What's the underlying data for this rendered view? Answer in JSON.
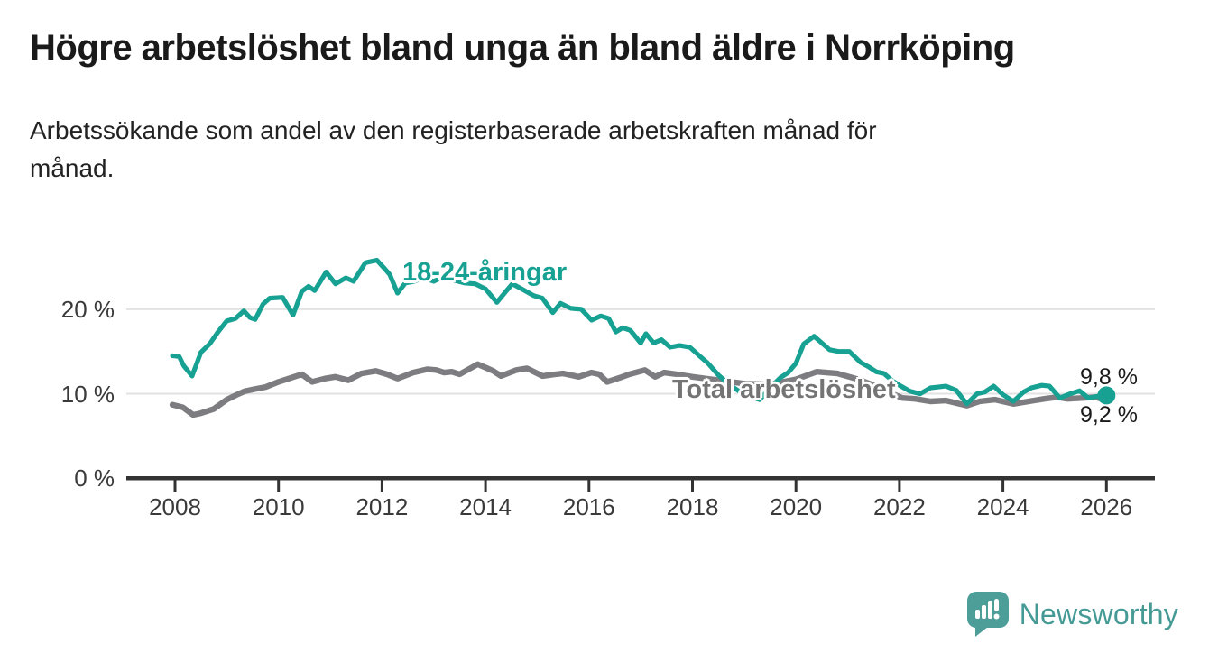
{
  "header": {
    "title": "Högre arbetslöshet bland unga än bland äldre i Norrköping",
    "subtitle_lines": [
      "Arbetssökande som andel av den registerbaserade arbetskraften månad för",
      "månad."
    ]
  },
  "chart_data": {
    "type": "line",
    "title": "Högre arbetslöshet bland unga än bland äldre i Norrköping",
    "xlabel": "",
    "ylabel": "",
    "grid": "horizontal-only",
    "legend_position": "inline-labels",
    "xlim": [
      2007.3,
      2026.9
    ],
    "ylim": [
      0,
      28
    ],
    "x_ticks": [
      2008,
      2010,
      2012,
      2014,
      2016,
      2018,
      2020,
      2022,
      2024,
      2026
    ],
    "y_ticks": [
      {
        "value": 0,
        "label": "0 %"
      },
      {
        "value": 10,
        "label": "10 %"
      },
      {
        "value": 20,
        "label": "20 %"
      }
    ],
    "colors": {
      "young": "#16a193",
      "total": "#7d7d81",
      "total_label_text": "#747474",
      "axis": "#333333",
      "gridline": "#e2e2e2"
    },
    "series": [
      {
        "name": "18-24-åringar",
        "color": "#16a193",
        "end_label": "9,8 %",
        "end_dot": true,
        "points": [
          [
            2007.95,
            14.5
          ],
          [
            2008.08,
            14.4
          ],
          [
            2008.17,
            13.3
          ],
          [
            2008.33,
            12.1
          ],
          [
            2008.5,
            14.9
          ],
          [
            2008.67,
            15.9
          ],
          [
            2008.83,
            17.3
          ],
          [
            2009.0,
            18.6
          ],
          [
            2009.17,
            18.9
          ],
          [
            2009.33,
            19.8
          ],
          [
            2009.45,
            19.0
          ],
          [
            2009.55,
            18.8
          ],
          [
            2009.7,
            20.6
          ],
          [
            2009.83,
            21.3
          ],
          [
            2010.08,
            21.4
          ],
          [
            2010.28,
            19.3
          ],
          [
            2010.45,
            22.1
          ],
          [
            2010.58,
            22.7
          ],
          [
            2010.7,
            22.2
          ],
          [
            2010.92,
            24.4
          ],
          [
            2011.1,
            23.0
          ],
          [
            2011.3,
            23.7
          ],
          [
            2011.45,
            23.3
          ],
          [
            2011.68,
            25.5
          ],
          [
            2011.9,
            25.8
          ],
          [
            2012.05,
            24.8
          ],
          [
            2012.15,
            24.1
          ],
          [
            2012.3,
            21.9
          ],
          [
            2012.45,
            23.1
          ],
          [
            2012.62,
            23.3
          ],
          [
            2012.8,
            23.7
          ],
          [
            2013.0,
            23.3
          ],
          [
            2013.2,
            23.9
          ],
          [
            2013.4,
            23.4
          ],
          [
            2013.6,
            23.1
          ],
          [
            2013.8,
            23.0
          ],
          [
            2014.0,
            22.4
          ],
          [
            2014.22,
            20.8
          ],
          [
            2014.38,
            22.0
          ],
          [
            2014.52,
            23.0
          ],
          [
            2014.7,
            22.4
          ],
          [
            2014.93,
            21.6
          ],
          [
            2015.1,
            21.3
          ],
          [
            2015.3,
            19.6
          ],
          [
            2015.45,
            20.7
          ],
          [
            2015.65,
            20.1
          ],
          [
            2015.85,
            20.0
          ],
          [
            2016.05,
            18.7
          ],
          [
            2016.23,
            19.2
          ],
          [
            2016.38,
            18.9
          ],
          [
            2016.52,
            17.3
          ],
          [
            2016.65,
            17.8
          ],
          [
            2016.8,
            17.5
          ],
          [
            2017.0,
            16.0
          ],
          [
            2017.1,
            17.1
          ],
          [
            2017.25,
            16.0
          ],
          [
            2017.4,
            16.4
          ],
          [
            2017.57,
            15.5
          ],
          [
            2017.75,
            15.7
          ],
          [
            2017.95,
            15.5
          ],
          [
            2018.15,
            14.4
          ],
          [
            2018.3,
            13.6
          ],
          [
            2018.5,
            12.2
          ],
          [
            2018.75,
            10.9
          ],
          [
            2019.0,
            9.9
          ],
          [
            2019.3,
            9.3
          ],
          [
            2019.5,
            10.7
          ],
          [
            2019.7,
            11.9
          ],
          [
            2019.85,
            12.5
          ],
          [
            2020.0,
            13.6
          ],
          [
            2020.15,
            15.9
          ],
          [
            2020.35,
            16.8
          ],
          [
            2020.5,
            16.0
          ],
          [
            2020.65,
            15.2
          ],
          [
            2020.82,
            15.0
          ],
          [
            2021.03,
            15.0
          ],
          [
            2021.25,
            13.7
          ],
          [
            2021.4,
            13.2
          ],
          [
            2021.55,
            12.6
          ],
          [
            2021.7,
            12.4
          ],
          [
            2021.85,
            11.6
          ],
          [
            2022.0,
            11.0
          ],
          [
            2022.2,
            10.3
          ],
          [
            2022.4,
            10.0
          ],
          [
            2022.6,
            10.7
          ],
          [
            2022.75,
            10.8
          ],
          [
            2022.9,
            10.9
          ],
          [
            2023.1,
            10.4
          ],
          [
            2023.3,
            8.8
          ],
          [
            2023.5,
            10.0
          ],
          [
            2023.65,
            10.2
          ],
          [
            2023.82,
            10.9
          ],
          [
            2024.0,
            9.9
          ],
          [
            2024.2,
            9.1
          ],
          [
            2024.4,
            10.2
          ],
          [
            2024.55,
            10.7
          ],
          [
            2024.75,
            11.0
          ],
          [
            2024.9,
            10.9
          ],
          [
            2025.1,
            9.5
          ],
          [
            2025.3,
            10.0
          ],
          [
            2025.48,
            10.35
          ],
          [
            2025.65,
            9.5
          ],
          [
            2025.82,
            9.7
          ],
          [
            2026.0,
            9.8
          ]
        ]
      },
      {
        "name": "Total arbetslöshet",
        "color": "#7d7d81",
        "end_label": "9,2 %",
        "end_dot": false,
        "points": [
          [
            2007.95,
            8.7
          ],
          [
            2008.15,
            8.4
          ],
          [
            2008.35,
            7.5
          ],
          [
            2008.5,
            7.7
          ],
          [
            2008.75,
            8.2
          ],
          [
            2009.0,
            9.3
          ],
          [
            2009.2,
            9.9
          ],
          [
            2009.35,
            10.3
          ],
          [
            2009.5,
            10.5
          ],
          [
            2009.75,
            10.8
          ],
          [
            2010.0,
            11.4
          ],
          [
            2010.2,
            11.8
          ],
          [
            2010.45,
            12.3
          ],
          [
            2010.65,
            11.4
          ],
          [
            2010.9,
            11.8
          ],
          [
            2011.1,
            12.0
          ],
          [
            2011.35,
            11.6
          ],
          [
            2011.6,
            12.4
          ],
          [
            2011.88,
            12.7
          ],
          [
            2012.1,
            12.3
          ],
          [
            2012.3,
            11.8
          ],
          [
            2012.6,
            12.5
          ],
          [
            2012.88,
            12.9
          ],
          [
            2013.05,
            12.8
          ],
          [
            2013.2,
            12.5
          ],
          [
            2013.35,
            12.6
          ],
          [
            2013.5,
            12.3
          ],
          [
            2013.85,
            13.5
          ],
          [
            2014.0,
            13.1
          ],
          [
            2014.15,
            12.7
          ],
          [
            2014.3,
            12.1
          ],
          [
            2014.6,
            12.8
          ],
          [
            2014.8,
            13.0
          ],
          [
            2015.1,
            12.1
          ],
          [
            2015.35,
            12.3
          ],
          [
            2015.5,
            12.4
          ],
          [
            2015.8,
            12.0
          ],
          [
            2016.05,
            12.5
          ],
          [
            2016.2,
            12.3
          ],
          [
            2016.35,
            11.4
          ],
          [
            2016.6,
            11.9
          ],
          [
            2016.78,
            12.3
          ],
          [
            2017.08,
            12.8
          ],
          [
            2017.28,
            12.0
          ],
          [
            2017.45,
            12.5
          ],
          [
            2017.7,
            12.3
          ],
          [
            2018.0,
            12.0
          ],
          [
            2018.5,
            11.6
          ],
          [
            2019.0,
            11.2
          ],
          [
            2019.5,
            11.1
          ],
          [
            2020.0,
            11.7
          ],
          [
            2020.4,
            12.6
          ],
          [
            2020.8,
            12.4
          ],
          [
            2021.2,
            11.7
          ],
          [
            2021.6,
            10.8
          ],
          [
            2021.9,
            9.9
          ],
          [
            2022.05,
            9.5
          ],
          [
            2022.3,
            9.4
          ],
          [
            2022.6,
            9.1
          ],
          [
            2022.9,
            9.2
          ],
          [
            2023.1,
            8.9
          ],
          [
            2023.3,
            8.6
          ],
          [
            2023.55,
            9.1
          ],
          [
            2023.85,
            9.3
          ],
          [
            2024.2,
            8.8
          ],
          [
            2024.5,
            9.1
          ],
          [
            2024.8,
            9.4
          ],
          [
            2025.05,
            9.6
          ],
          [
            2025.25,
            9.4
          ],
          [
            2025.55,
            9.5
          ],
          [
            2025.8,
            9.6
          ],
          [
            2026.0,
            9.2
          ]
        ]
      }
    ]
  },
  "footer": {
    "brand": "Newsworthy"
  }
}
